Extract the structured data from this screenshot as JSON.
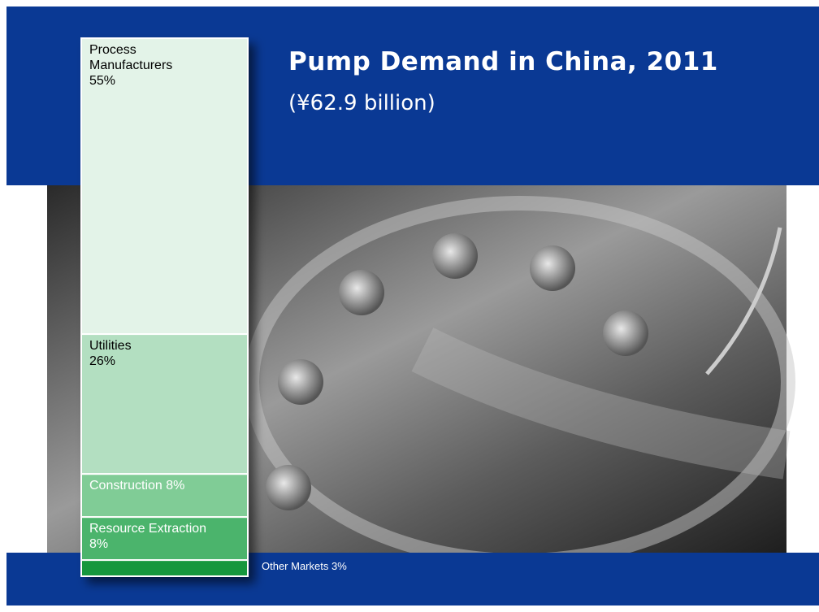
{
  "chart_data": {
    "type": "stacked_bar",
    "title": "Pump Demand in China, 2011",
    "subtitle": "(¥62.9 billion)",
    "categories": [
      "Process Manufacturers",
      "Utilities",
      "Construction",
      "Resource Extraction",
      "Other Markets"
    ],
    "values": [
      55,
      26,
      8,
      8,
      3
    ],
    "value_labels": [
      "55%",
      "26%",
      "8%",
      "8%",
      "3%"
    ],
    "colors": [
      "#e3f3e8",
      "#b3dfc1",
      "#80cc96",
      "#4cb46c",
      "#14973c"
    ]
  }
}
